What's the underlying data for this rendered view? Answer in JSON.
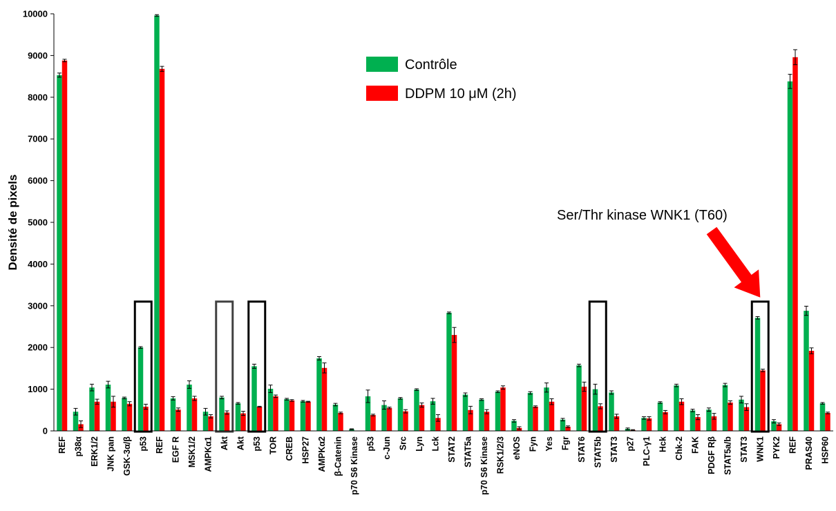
{
  "chart_data": {
    "type": "bar",
    "title": "",
    "xlabel": "",
    "ylabel": "Densité de pixels",
    "ylim": [
      0,
      10000
    ],
    "yticks": [
      0,
      1000,
      2000,
      3000,
      4000,
      5000,
      6000,
      7000,
      8000,
      9000,
      10000
    ],
    "grid": false,
    "legend_position": "top-center",
    "categories": [
      "REF",
      "p38α",
      "ERK1/2",
      "JNK pan",
      "GSK-3α/β",
      "p53",
      "REF",
      "EGF R",
      "MSK1/2",
      "AMPKα1",
      "Akt",
      "Akt",
      "p53",
      "TOR",
      "CREB",
      "HSP27",
      "AMPKα2",
      "β-Catenin",
      "p70 S6 Kinase",
      "p53",
      "c-Jun",
      "Src",
      "Lyn",
      "Lck",
      "STAT2",
      "STAT5a",
      "p70 S6 Kinase",
      "RSK1/2/3",
      "eNOS",
      "Fyn",
      "Yes",
      "Fgr",
      "STAT6",
      "STAT5b",
      "STAT3",
      "p27",
      "PLC-γ1",
      "Hck",
      "Chk-2",
      "FAK",
      "PDGF Rβ",
      "STAT5a/b",
      "STAT3",
      "WNK1",
      "PYK2",
      "REF",
      "PRAS40",
      "HSP60"
    ],
    "series": [
      {
        "name": "Contrôle",
        "color": "#00b050",
        "values": [
          8530,
          460,
          1040,
          1110,
          790,
          2000,
          9960,
          780,
          1110,
          460,
          800,
          660,
          1550,
          1010,
          760,
          710,
          1740,
          630,
          40,
          830,
          620,
          780,
          990,
          710,
          2830,
          870,
          750,
          940,
          240,
          910,
          1040,
          270,
          1570,
          1000,
          920,
          50,
          310,
          680,
          1090,
          490,
          510,
          1100,
          750,
          2710,
          230,
          8380,
          2880,
          660
        ],
        "errors": [
          50,
          80,
          80,
          80,
          20,
          20,
          20,
          40,
          90,
          80,
          30,
          20,
          50,
          90,
          20,
          20,
          40,
          30,
          10,
          150,
          100,
          20,
          20,
          70,
          20,
          40,
          20,
          20,
          30,
          30,
          110,
          30,
          30,
          120,
          40,
          20,
          30,
          20,
          30,
          30,
          40,
          40,
          80,
          30,
          40,
          170,
          110,
          20
        ]
      },
      {
        "name": "DDPM 10 μM (2h)",
        "color": "#ff0000",
        "values": [
          8880,
          160,
          700,
          700,
          650,
          580,
          8680,
          510,
          780,
          350,
          440,
          420,
          580,
          830,
          730,
          700,
          1510,
          430,
          0,
          380,
          550,
          470,
          620,
          310,
          2300,
          500,
          460,
          1040,
          70,
          580,
          700,
          100,
          1060,
          590,
          350,
          20,
          300,
          450,
          700,
          330,
          350,
          680,
          570,
          1450,
          160,
          8960,
          1920,
          430
        ],
        "errors": [
          30,
          80,
          60,
          130,
          50,
          60,
          60,
          40,
          50,
          40,
          40,
          50,
          10,
          30,
          20,
          10,
          120,
          20,
          0,
          20,
          20,
          40,
          50,
          80,
          180,
          90,
          50,
          40,
          30,
          20,
          70,
          20,
          110,
          60,
          50,
          10,
          40,
          40,
          70,
          60,
          70,
          40,
          80,
          30,
          30,
          180,
          70,
          20
        ]
      }
    ],
    "highlight_boxes": [
      {
        "category_index": 5,
        "category": "p53",
        "value_top": 3100,
        "color": "#000000"
      },
      {
        "category_index": 10,
        "category": "Akt",
        "value_top": 3100,
        "color": "#404040"
      },
      {
        "category_index": 12,
        "category": "p53",
        "value_top": 3100,
        "color": "#000000"
      },
      {
        "category_index": 33,
        "category": "STAT5b",
        "value_top": 3100,
        "color": "#000000"
      },
      {
        "category_index": 43,
        "category": "WNK1",
        "value_top": 3100,
        "color": "#000000"
      }
    ],
    "annotation": {
      "text": "Ser/Thr kinase  WNK1 (T60)",
      "arrow_color": "#ff0000",
      "points_to_category_index": 43
    }
  }
}
